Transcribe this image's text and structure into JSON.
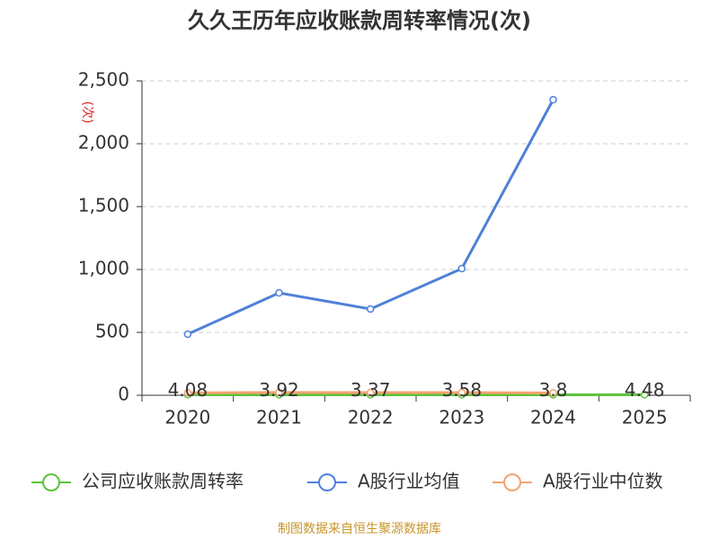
{
  "chart_data": {
    "type": "line",
    "title": "久久王历年应收账款周转率情况(次)",
    "y_label": "(次)",
    "categories": [
      "2020",
      "2021",
      "2022",
      "2023",
      "2024",
      "2025"
    ],
    "series": [
      {
        "name": "公司应收账款周转率",
        "color": "#5cc43a",
        "values": [
          4.08,
          3.92,
          3.37,
          3.58,
          3.8,
          4.48
        ],
        "show_labels": true
      },
      {
        "name": "A股行业均值",
        "color": "#4f80d9",
        "values": [
          486,
          814,
          686,
          1007,
          2350,
          null
        ]
      },
      {
        "name": "A股行业中位数",
        "color": "#f4a370",
        "values": [
          20,
          22,
          21,
          21,
          19,
          null
        ]
      }
    ],
    "ylim": [
      0,
      2500
    ],
    "yticks": [
      0,
      500,
      {
        "value": 1000,
        "label": "1,000"
      },
      {
        "value": 1500,
        "label": "1,500"
      },
      {
        "value": 2000,
        "label": "2,000"
      },
      {
        "value": 2500,
        "label": "2,500"
      }
    ],
    "grid": true,
    "legend": "bottom",
    "source": "制图数据来自恒生聚源数据库"
  }
}
